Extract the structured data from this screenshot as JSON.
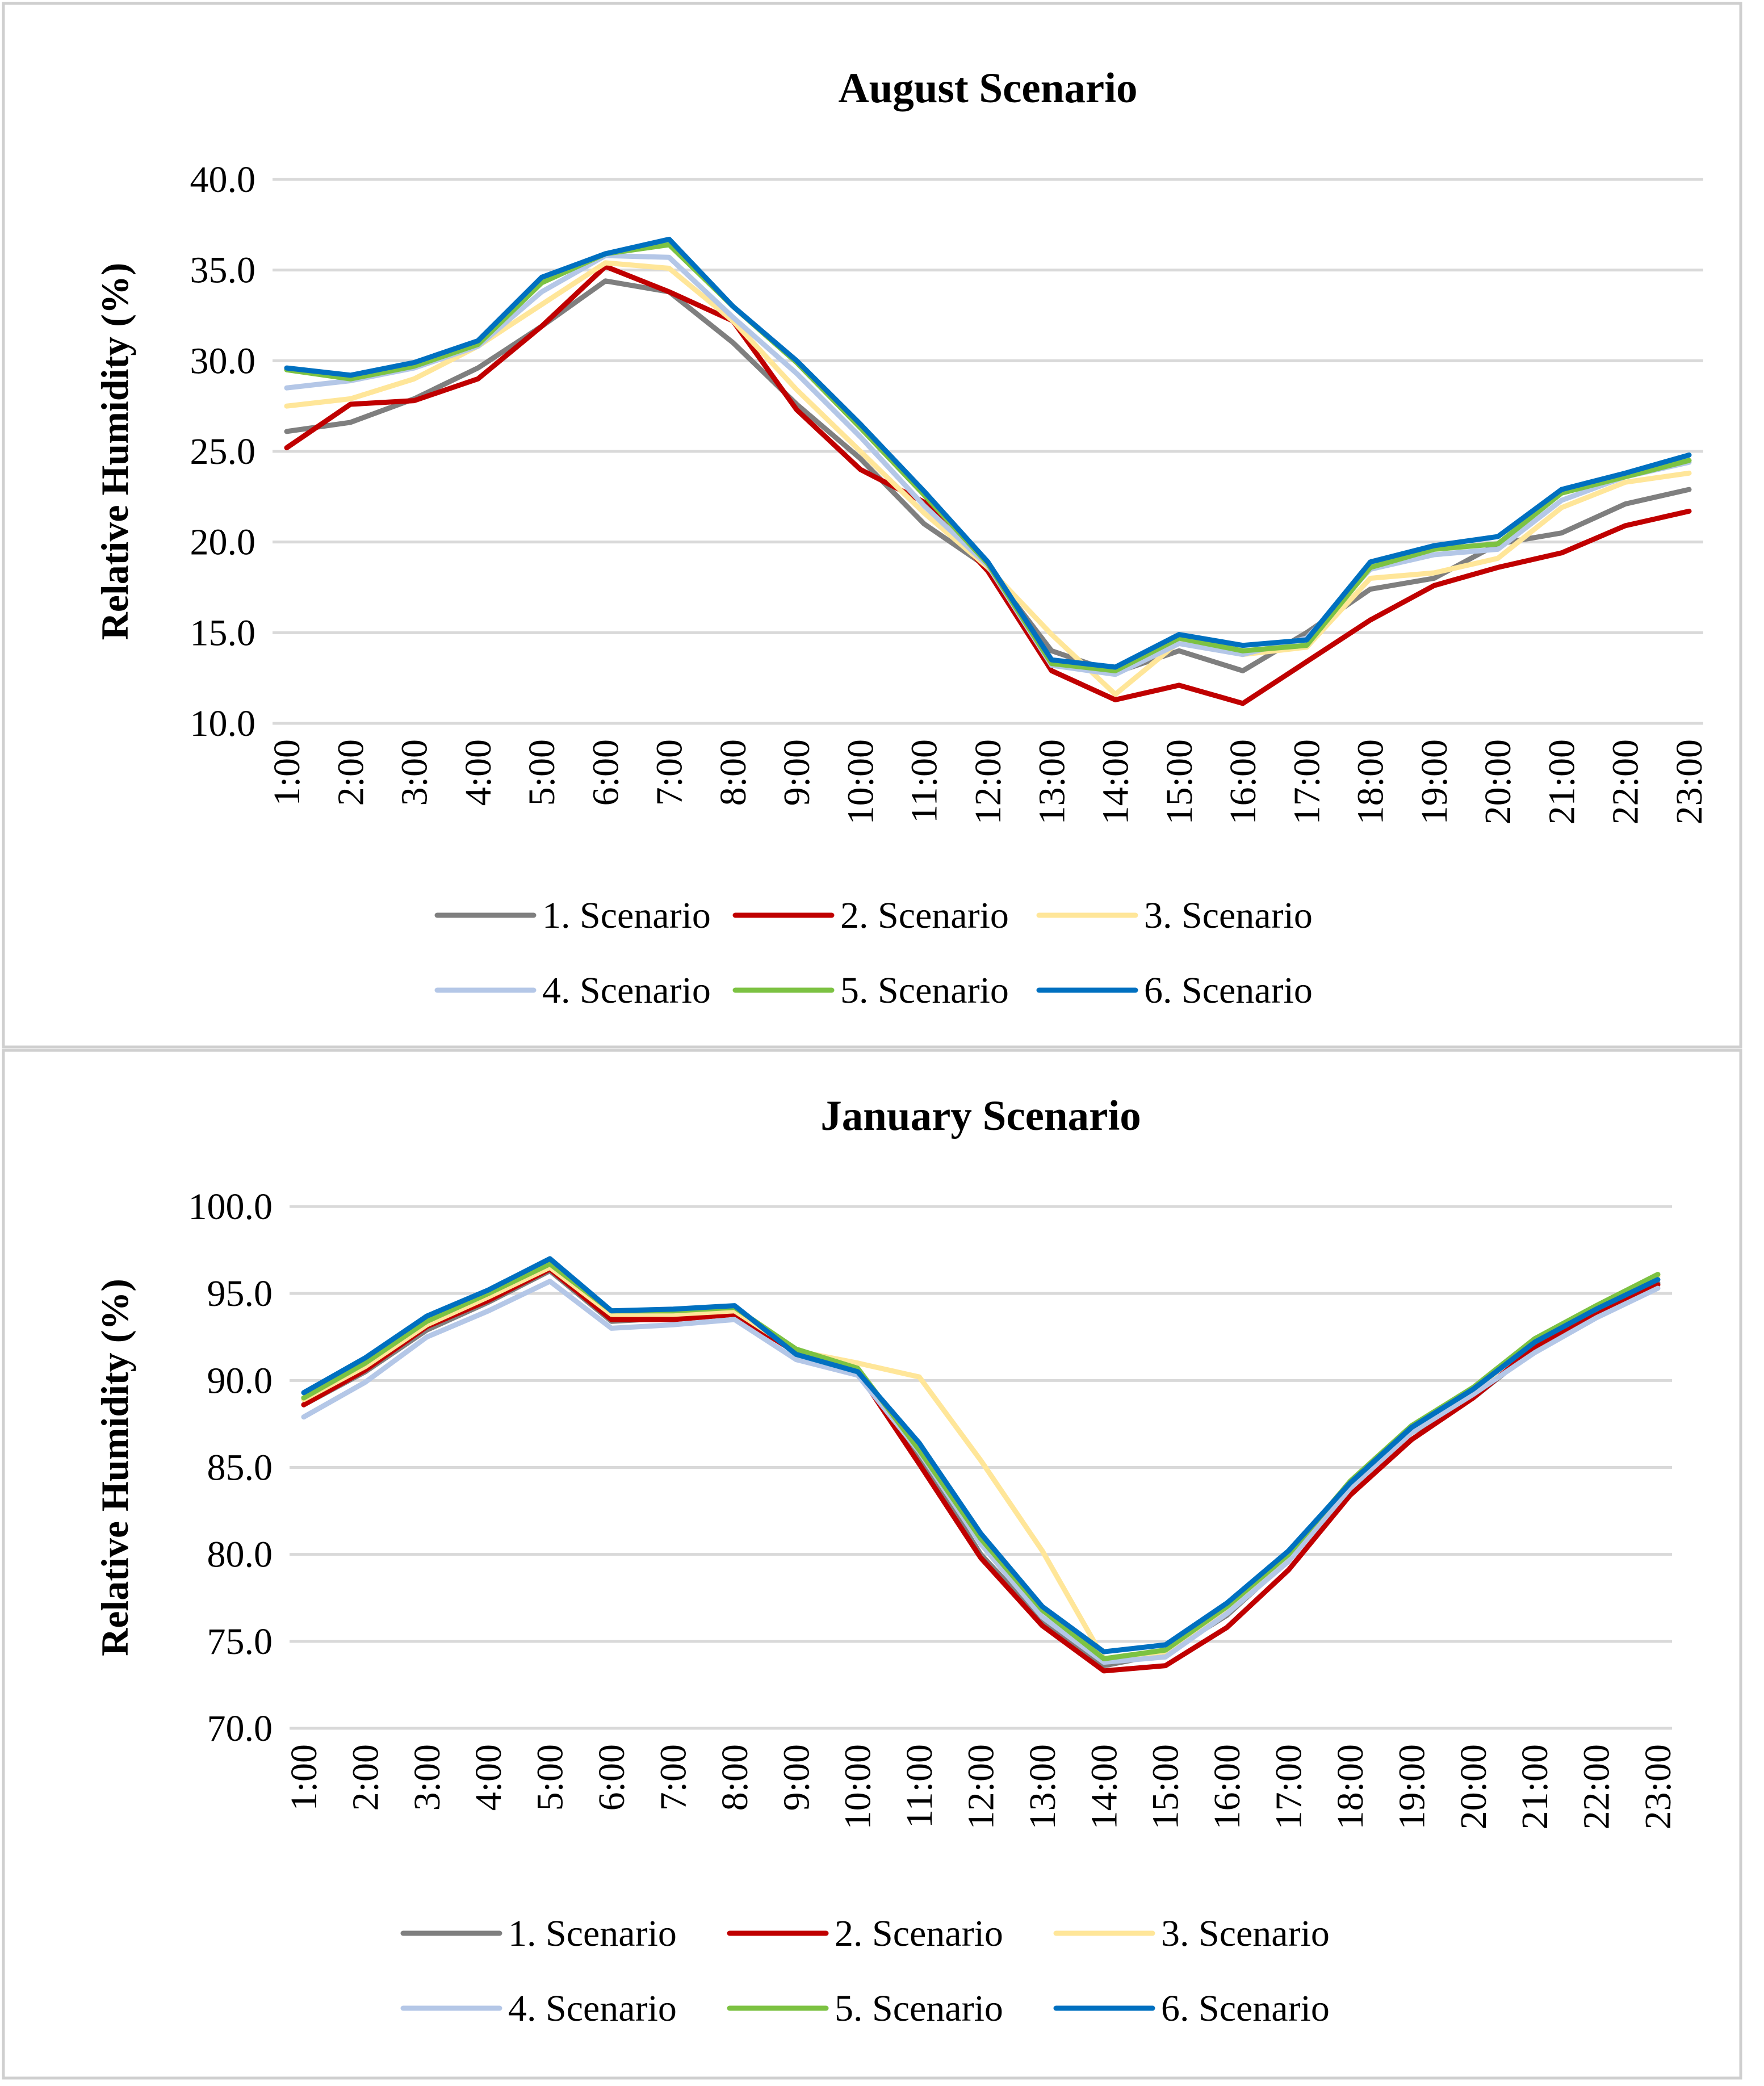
{
  "chart_data": [
    {
      "type": "line",
      "title": "August Scenario",
      "xlabel": "",
      "ylabel": "Relative Humidity (%)",
      "ylim": [
        10,
        40
      ],
      "yticks": [
        10,
        15,
        20,
        25,
        30,
        35,
        40
      ],
      "ytick_labels": [
        "10.0",
        "15.0",
        "20.0",
        "25.0",
        "30.0",
        "35.0",
        "40.0"
      ],
      "grid": true,
      "legend_position": "bottom",
      "categories": [
        "1:00",
        "2:00",
        "3:00",
        "4:00",
        "5:00",
        "6:00",
        "7:00",
        "8:00",
        "9:00",
        "10:00",
        "11:00",
        "12:00",
        "13:00",
        "14:00",
        "15:00",
        "16:00",
        "17:00",
        "18:00",
        "19:00",
        "20:00",
        "21:00",
        "22:00",
        "23:00"
      ],
      "series": [
        {
          "name": "1. Scenario",
          "color": "#7f7f7f",
          "values": [
            26.1,
            26.6,
            27.9,
            29.6,
            31.9,
            34.4,
            33.8,
            31.0,
            27.6,
            24.6,
            21.0,
            18.6,
            14.0,
            12.8,
            14.0,
            12.9,
            15.0,
            17.4,
            18.0,
            19.9,
            20.5,
            22.1,
            22.9
          ]
        },
        {
          "name": "2. Scenario",
          "color": "#c00000",
          "values": [
            25.2,
            27.6,
            27.8,
            29.0,
            31.9,
            35.2,
            33.8,
            32.2,
            27.3,
            24.0,
            22.2,
            18.4,
            12.9,
            11.3,
            12.1,
            11.1,
            13.4,
            15.7,
            17.6,
            18.6,
            19.4,
            20.9,
            21.7
          ]
        },
        {
          "name": "3. Scenario",
          "color": "#ffe699",
          "values": [
            27.5,
            27.9,
            29.0,
            30.8,
            33.1,
            35.4,
            35.1,
            32.2,
            28.4,
            25.0,
            21.6,
            18.6,
            14.9,
            11.6,
            14.5,
            13.8,
            14.2,
            18.0,
            18.3,
            19.1,
            21.9,
            23.3,
            23.8
          ]
        },
        {
          "name": "4. Scenario",
          "color": "#b4c7e7",
          "values": [
            28.5,
            28.9,
            29.6,
            30.8,
            33.8,
            35.8,
            35.7,
            32.4,
            29.3,
            25.8,
            22.0,
            18.7,
            13.2,
            12.7,
            14.4,
            13.8,
            14.7,
            18.5,
            19.3,
            19.6,
            22.3,
            23.6,
            24.4
          ]
        },
        {
          "name": "5. Scenario",
          "color": "#7cc242",
          "values": [
            29.5,
            29.0,
            29.7,
            30.9,
            34.3,
            35.9,
            36.4,
            33.0,
            29.9,
            26.3,
            22.6,
            18.8,
            13.3,
            12.9,
            14.7,
            14.0,
            14.3,
            18.6,
            19.6,
            19.9,
            22.7,
            23.6,
            24.5
          ]
        },
        {
          "name": "6. Scenario",
          "color": "#0070c0",
          "values": [
            29.6,
            29.2,
            29.9,
            31.1,
            34.6,
            35.9,
            36.7,
            33.0,
            30.0,
            26.5,
            22.8,
            18.9,
            13.5,
            13.1,
            14.9,
            14.3,
            14.6,
            18.9,
            19.8,
            20.3,
            22.9,
            23.8,
            24.8
          ]
        }
      ]
    },
    {
      "type": "line",
      "title": "January Scenario",
      "xlabel": "",
      "ylabel": "Relative Humidity (%)",
      "ylim": [
        70,
        100
      ],
      "yticks": [
        70,
        75,
        80,
        85,
        90,
        95,
        100
      ],
      "ytick_labels": [
        "70.0",
        "75.0",
        "80.0",
        "85.0",
        "90.0",
        "95.0",
        "100.0"
      ],
      "grid": true,
      "legend_position": "bottom",
      "categories": [
        "1:00",
        "2:00",
        "3:00",
        "4:00",
        "5:00",
        "6:00",
        "7:00",
        "8:00",
        "9:00",
        "10:00",
        "11:00",
        "12:00",
        "13:00",
        "14:00",
        "15:00",
        "16:00",
        "17:00",
        "18:00",
        "19:00",
        "20:00",
        "21:00",
        "22:00",
        "23:00"
      ],
      "series": [
        {
          "name": "1. Scenario",
          "color": "#7f7f7f",
          "values": [
            88.6,
            90.5,
            92.9,
            94.5,
            96.3,
            93.4,
            93.6,
            93.9,
            91.6,
            90.6,
            85.6,
            80.0,
            76.2,
            73.6,
            74.3,
            76.5,
            79.7,
            84.0,
            87.0,
            89.0,
            91.8,
            93.9,
            95.6
          ]
        },
        {
          "name": "2. Scenario",
          "color": "#c00000",
          "values": [
            88.6,
            90.6,
            93.1,
            94.6,
            96.4,
            93.5,
            93.5,
            93.8,
            91.6,
            90.5,
            85.2,
            79.8,
            75.9,
            73.3,
            73.6,
            75.8,
            79.1,
            83.4,
            86.6,
            89.0,
            91.9,
            93.8,
            95.5
          ]
        },
        {
          "name": "3. Scenario",
          "color": "#ffe699",
          "values": [
            88.9,
            90.8,
            93.2,
            94.8,
            96.5,
            93.8,
            93.8,
            94.0,
            91.7,
            91.0,
            90.2,
            85.4,
            80.2,
            74.0,
            74.4,
            76.9,
            79.9,
            84.0,
            87.2,
            89.4,
            92.3,
            94.1,
            96.0
          ]
        },
        {
          "name": "4. Scenario",
          "color": "#b4c7e7",
          "values": [
            87.9,
            89.9,
            92.5,
            94.0,
            95.7,
            93.0,
            93.2,
            93.5,
            91.2,
            90.3,
            85.9,
            80.6,
            76.4,
            73.8,
            74.1,
            76.6,
            79.6,
            83.8,
            87.0,
            89.2,
            91.6,
            93.6,
            95.3
          ]
        },
        {
          "name": "5. Scenario",
          "color": "#7cc242",
          "values": [
            89.0,
            91.0,
            93.4,
            95.0,
            96.7,
            94.0,
            94.0,
            94.2,
            91.8,
            90.7,
            86.0,
            80.9,
            76.8,
            74.0,
            74.5,
            77.0,
            80.0,
            84.2,
            87.4,
            89.6,
            92.4,
            94.3,
            96.1
          ]
        },
        {
          "name": "6. Scenario",
          "color": "#0070c0",
          "values": [
            89.3,
            91.3,
            93.7,
            95.2,
            97.0,
            94.0,
            94.1,
            94.3,
            91.5,
            90.5,
            86.4,
            81.2,
            77.0,
            74.4,
            74.8,
            77.2,
            80.2,
            84.1,
            87.3,
            89.5,
            92.2,
            94.1,
            95.8
          ]
        }
      ]
    }
  ]
}
